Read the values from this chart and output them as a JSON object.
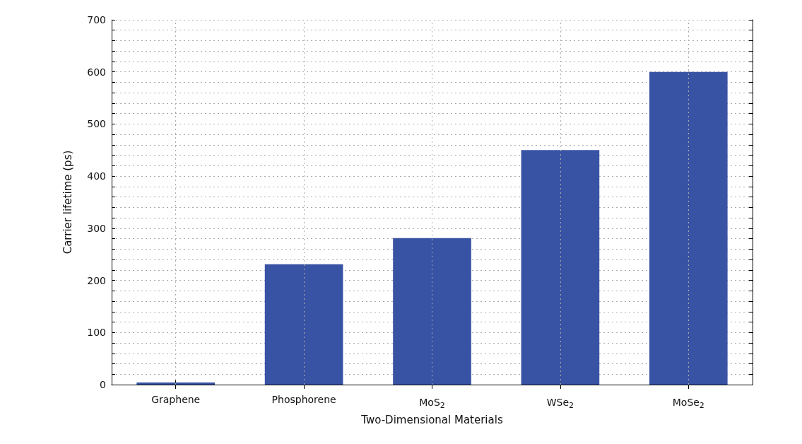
{
  "chart_data": {
    "type": "bar",
    "xlabel": "Two-Dimensional Materials",
    "ylabel": "Carrier lifetime (ps)",
    "categories": [
      "Graphene",
      "Phosphorene",
      "MoS$_{2}$",
      "WSe$_{2}$",
      "MoSe$_{2}$"
    ],
    "values": [
      4,
      231,
      281,
      450,
      600
    ],
    "color": "#3953a4",
    "ylim": [
      0,
      700
    ],
    "yticks": [
      0,
      {
        "value": 20,
        "label": null
      },
      {
        "value": 40,
        "label": null
      },
      {
        "value": 60,
        "label": null
      },
      {
        "value": 80,
        "label": null
      },
      100,
      {
        "value": 120,
        "label": null
      },
      {
        "value": 140,
        "label": null
      },
      {
        "value": 160,
        "label": null
      },
      {
        "value": 180,
        "label": null
      },
      200,
      {
        "value": 220,
        "label": null
      },
      {
        "value": 240,
        "label": null
      },
      {
        "value": 260,
        "label": null
      },
      {
        "value": 280,
        "label": null
      },
      300,
      {
        "value": 320,
        "label": null
      },
      {
        "value": 340,
        "label": null
      },
      {
        "value": 360,
        "label": null
      },
      {
        "value": 380,
        "label": null
      },
      400,
      {
        "value": 420,
        "label": null
      },
      {
        "value": 440,
        "label": null
      },
      {
        "value": 460,
        "label": null
      },
      {
        "value": 480,
        "label": null
      },
      500,
      {
        "value": 520,
        "label": null
      },
      {
        "value": 540,
        "label": null
      },
      {
        "value": 560,
        "label": null
      },
      {
        "value": 580,
        "label": null
      },
      600,
      {
        "value": 620,
        "label": null
      },
      {
        "value": 640,
        "label": null
      },
      {
        "value": 660,
        "label": null
      },
      {
        "value": 680,
        "label": null
      },
      700
    ],
    "grid": true
  }
}
